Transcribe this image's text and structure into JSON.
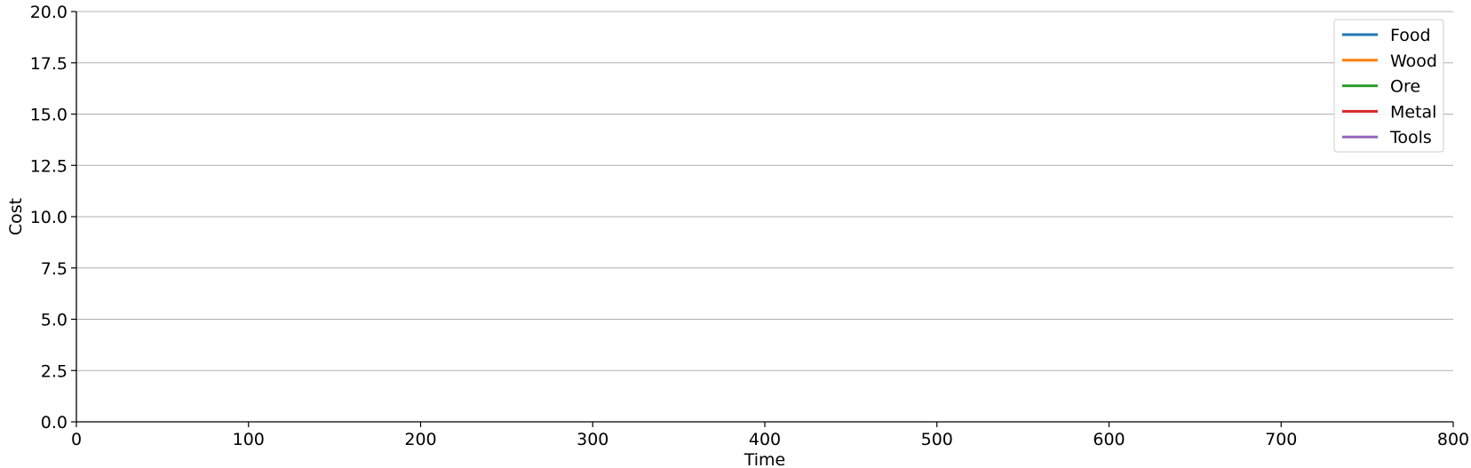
{
  "chart_data": {
    "type": "line",
    "title": "",
    "xlabel": "Time",
    "ylabel": "Cost",
    "xlim": [
      0,
      800
    ],
    "ylim": [
      0,
      20
    ],
    "x_ticks": [
      "0",
      "100",
      "200",
      "300",
      "400",
      "500",
      "600",
      "700",
      "800"
    ],
    "y_ticks": [
      "0.0",
      "2.5",
      "5.0",
      "7.5",
      "10.0",
      "12.5",
      "15.0",
      "17.5",
      "20.0"
    ],
    "grid": "horizontal",
    "legend_position": "top-right",
    "series": [
      {
        "name": "Food",
        "color": "#1f77b4",
        "values": []
      },
      {
        "name": "Wood",
        "color": "#ff7f0e",
        "values": []
      },
      {
        "name": "Ore",
        "color": "#2ca02c",
        "values": []
      },
      {
        "name": "Metal",
        "color": "#d62728",
        "values": []
      },
      {
        "name": "Tools",
        "color": "#9467bd",
        "values": []
      }
    ]
  }
}
